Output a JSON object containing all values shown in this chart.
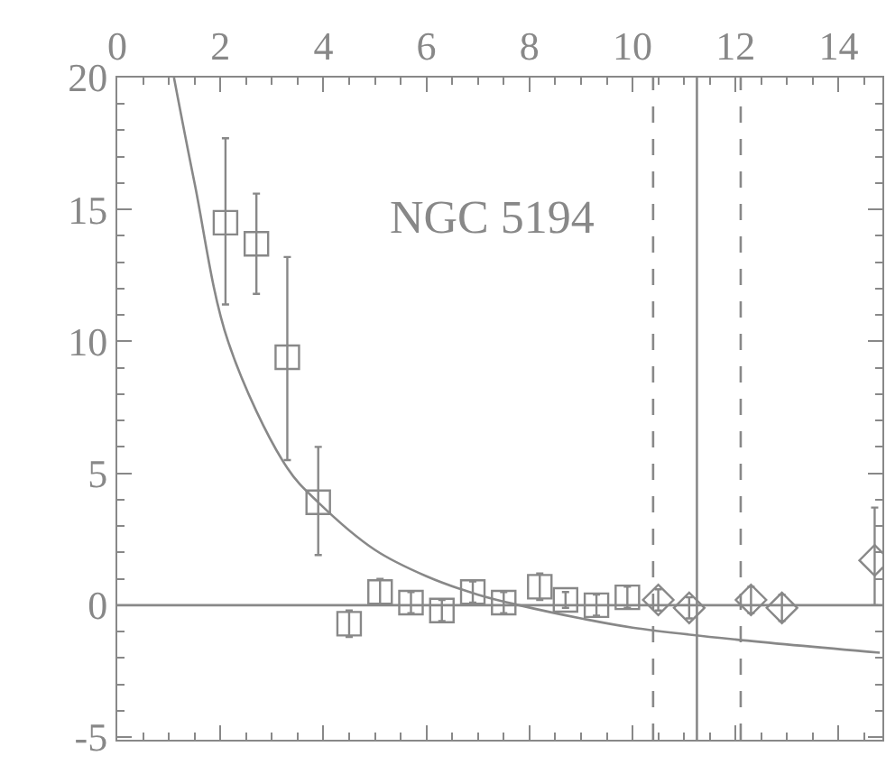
{
  "chart_data": {
    "type": "scatter",
    "annotations": [
      "NGC 5194"
    ],
    "series": [
      {
        "marker": "square",
        "color": "#888888",
        "x": [
          2.1,
          2.7,
          3.3,
          3.9,
          4.5,
          5.1,
          5.7,
          6.3,
          6.9,
          7.5,
          8.2,
          8.7,
          9.3,
          9.9
        ],
        "values": [
          14.5,
          13.7,
          9.4,
          3.9,
          -0.7,
          0.5,
          0.1,
          -0.2,
          0.5,
          0.1,
          0.7,
          0.2,
          0.0,
          0.3
        ],
        "errors": [
          [
            11.4,
            17.7
          ],
          [
            11.8,
            15.6
          ],
          [
            5.5,
            13.2
          ],
          [
            1.9,
            6.0
          ],
          0.5,
          0.5,
          0.4,
          0.4,
          0.4,
          0.4,
          0.5,
          0.3,
          0.4,
          0.4
        ]
      },
      {
        "marker": "diamond",
        "color": "#888888",
        "x": [
          10.5,
          11.1,
          12.3,
          12.9,
          14.7
        ],
        "values": [
          0.2,
          -0.1,
          0.2,
          -0.1,
          1.7
        ],
        "errors": [
          0.4,
          0.4,
          0.5,
          0.5,
          [
            0.0,
            3.7
          ]
        ]
      },
      {
        "type": "line",
        "marker": "none",
        "color": "#888888",
        "x": [
          1.1,
          1.5,
          2.15,
          3.3,
          3.9,
          5,
          6,
          7,
          7.8,
          9,
          10,
          12,
          14.8
        ],
        "values": [
          20,
          16,
          10,
          5.2,
          3.9,
          2.1,
          1.1,
          0.4,
          0,
          -0.5,
          -0.85,
          -1.3,
          -1.8
        ]
      }
    ],
    "ref_lines": [
      {
        "axis": "y",
        "value": 0,
        "color": "#888888",
        "line_style": "solid"
      },
      {
        "axis": "x",
        "value": 10.4,
        "color": "#888888",
        "line_style": "dashed"
      },
      {
        "axis": "x",
        "value": 11.25,
        "color": "#888888",
        "line_style": "solid"
      },
      {
        "axis": "x",
        "value": 12.1,
        "color": "#888888",
        "line_style": "dashed"
      }
    ],
    "xlim": [
      0,
      14.85
    ],
    "xticks": [
      0,
      2,
      4,
      6,
      8,
      10,
      12,
      14
    ],
    "ylim": [
      -5.1,
      20
    ],
    "yticks": [
      -5,
      0,
      5,
      10,
      15,
      20
    ]
  }
}
